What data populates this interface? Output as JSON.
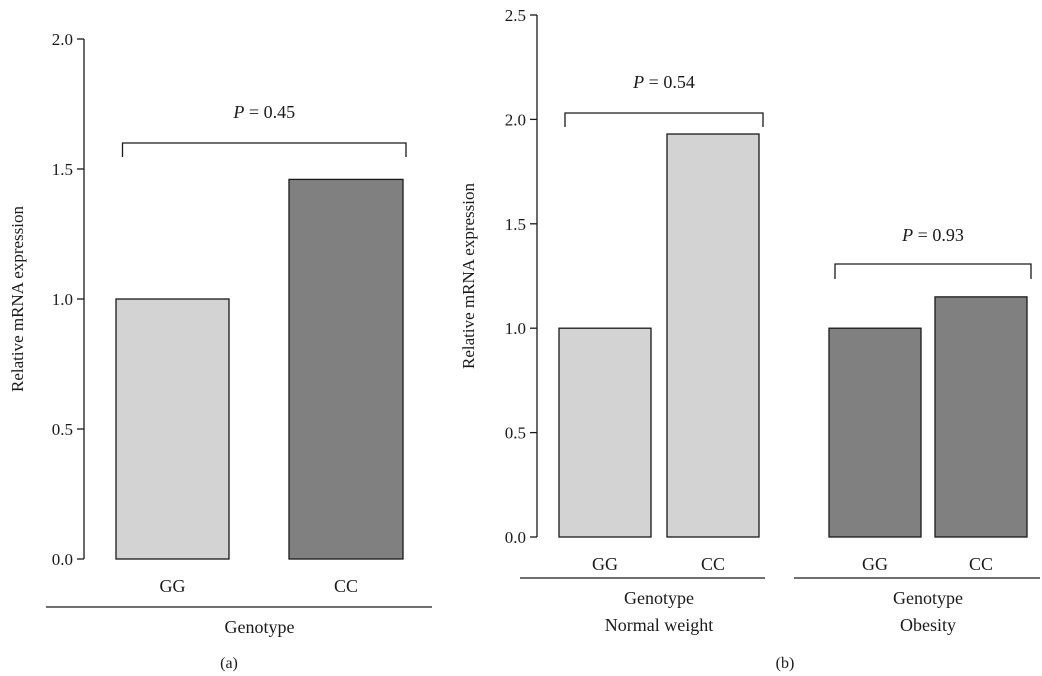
{
  "chart_data": [
    {
      "type": "bar",
      "panel_label": "(a)",
      "ylabel": "Relative mRNA expression",
      "ylim": [
        0,
        2.0
      ],
      "yticks": [
        "0.0",
        "0.5",
        "1.0",
        "1.5",
        "2.0"
      ],
      "ytick_values": [
        0,
        0.5,
        1.0,
        1.5,
        2.0
      ],
      "groups": [
        {
          "label": "Genotype",
          "bars": [
            {
              "category": "GG",
              "value": 1.0,
              "color": "#d3d3d3"
            },
            {
              "category": "CC",
              "value": 1.46,
              "color": "#808080"
            }
          ]
        }
      ],
      "annotations": [
        {
          "p_prefix": "P",
          "p_rest": " = 0.45",
          "from": "GG",
          "to": "CC"
        }
      ]
    },
    {
      "type": "bar",
      "panel_label": "(b)",
      "ylabel": "Relative mRNA expression",
      "ylim": [
        0,
        2.5
      ],
      "yticks": [
        "0.0",
        "0.5",
        "1.0",
        "1.5",
        "2.0",
        "2.5"
      ],
      "ytick_values": [
        0,
        0.5,
        1.0,
        1.5,
        2.0,
        2.5
      ],
      "groups": [
        {
          "label": "Genotype",
          "sublabel": "Normal weight",
          "bars": [
            {
              "category": "GG",
              "value": 1.0,
              "color": "#d3d3d3"
            },
            {
              "category": "CC",
              "value": 1.93,
              "color": "#d3d3d3"
            }
          ]
        },
        {
          "label": "Genotype",
          "sublabel": "Obesity",
          "bars": [
            {
              "category": "GG",
              "value": 1.0,
              "color": "#808080"
            },
            {
              "category": "CC",
              "value": 1.15,
              "color": "#808080"
            }
          ]
        }
      ],
      "annotations": [
        {
          "p_prefix": "P",
          "p_rest": " = 0.54",
          "group": 0
        },
        {
          "p_prefix": "P",
          "p_rest": " = 0.93",
          "group": 1
        }
      ]
    }
  ]
}
